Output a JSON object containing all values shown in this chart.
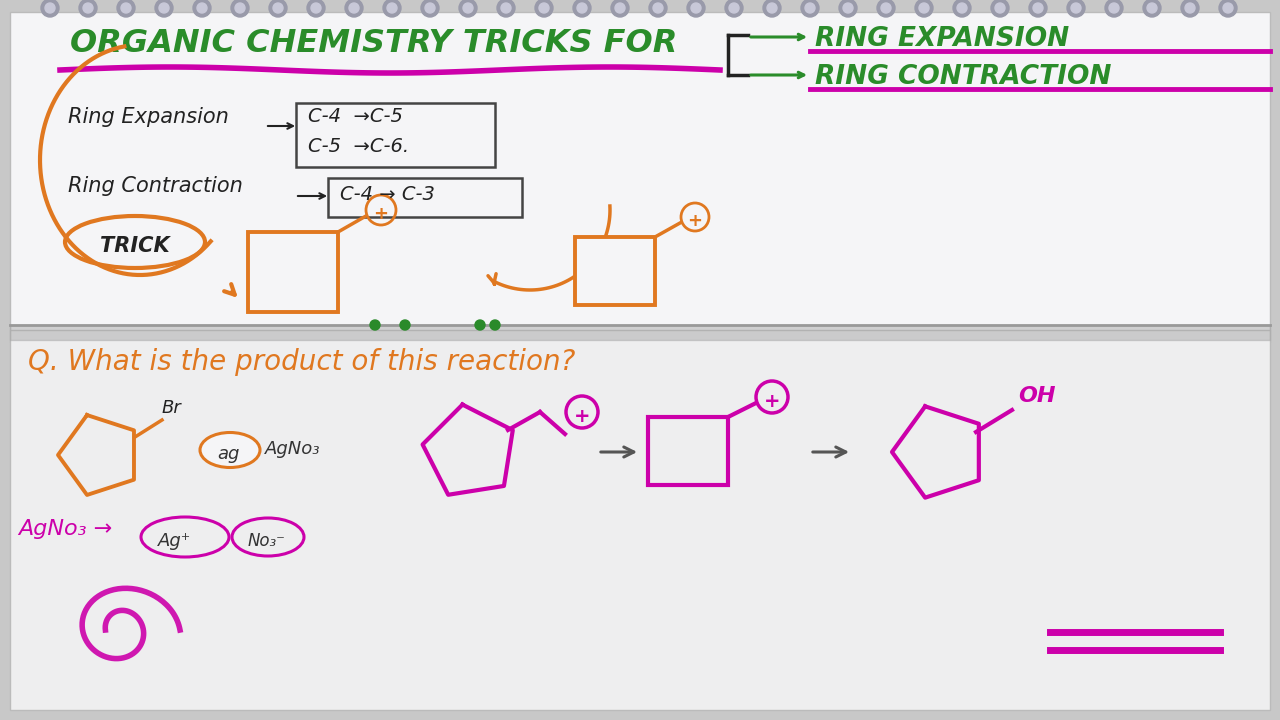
{
  "bg_color": "#c8c8c8",
  "page_top_color": "#f0f0f0",
  "page_bot_color": "#e8e8e8",
  "green_color": "#2a8c2a",
  "orange_color": "#e07820",
  "magenta_color": "#cc00aa",
  "dark_color": "#222222",
  "title_text": "ORGANIC CHEMISTRY TRICKS FOR",
  "ring_expansion_text": "RING EXPANSION",
  "ring_contraction_text": "RING CONTRACTION",
  "re_label": "Ring Expansion",
  "rc_label": "Ring Contraction",
  "box1_line1": "C-4  →C-5",
  "box1_line2": "C-5  →C-6.",
  "box2_text": "C-4 → C-3",
  "trick_text": "TRICK",
  "question_text": "Q. What is the product of this reaction?",
  "br_label": "Br",
  "ag_label": "ag",
  "agno3_label": "AgNo₃",
  "oh_label": "OH"
}
